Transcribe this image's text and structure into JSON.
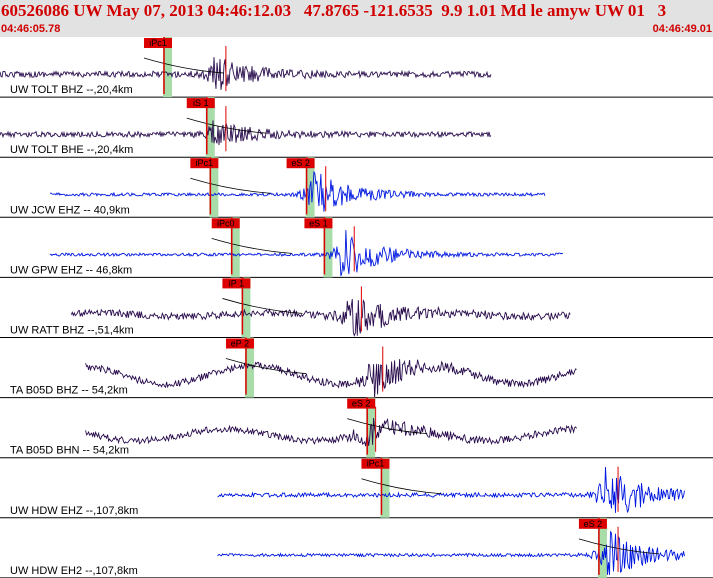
{
  "header": {
    "title": "60526086 UW May 07, 2013 04:46:12.03   47.8765 -121.6535  9.9 1.01 Md le amyw UW 01   3",
    "time_start": "04:46:05.78",
    "time_end": "04:46:49.01"
  },
  "colors": {
    "background": "#ffffff",
    "header_background": "#e2e2e2",
    "header_text": "#d10000",
    "trace_dark": "#2a0e4e",
    "trace_blue": "#0018e0",
    "pick_red": "#dd0000",
    "window_green": "#a8dca8"
  },
  "traces": [
    {
      "label": "UW TOLT BHZ --,20,4km",
      "color": "dark",
      "start": 0.0,
      "end": 0.69,
      "noise": 0.1,
      "burst_at": 0.3,
      "burst_amp": 0.55,
      "swell": 0,
      "picks": [
        {
          "label": "iPc1",
          "at": 0.23
        }
      ]
    },
    {
      "label": "UW TOLT BHE --,20,4km",
      "color": "dark",
      "start": 0.0,
      "end": 0.69,
      "noise": 0.09,
      "burst_at": 0.3,
      "burst_amp": 0.45,
      "swell": 0,
      "picks": [
        {
          "label": "iS 1",
          "at": 0.29
        }
      ]
    },
    {
      "label": "UW JCW EHZ -- 40,9km",
      "color": "blue",
      "start": 0.07,
      "end": 0.765,
      "noise": 0.05,
      "burst_at": 0.44,
      "burst_amp": 0.8,
      "swell": 0,
      "picks": [
        {
          "label": "iPc1",
          "at": 0.295
        },
        {
          "label": "eS 2",
          "at": 0.43
        }
      ]
    },
    {
      "label": "UW GPW EHZ -- 46,8km",
      "color": "blue",
      "start": 0.07,
      "end": 0.79,
      "noise": 0.05,
      "burst_at": 0.48,
      "burst_amp": 0.85,
      "swell": 0,
      "picks": [
        {
          "label": "iPc0",
          "at": 0.325
        },
        {
          "label": "eS 1",
          "at": 0.455
        }
      ]
    },
    {
      "label": "UW RATT BHZ --,51,4km",
      "color": "dark",
      "start": 0.1,
      "end": 0.8,
      "noise": 0.12,
      "burst_at": 0.49,
      "burst_amp": 0.7,
      "swell": 0.12,
      "picks": [
        {
          "label": "iP 1",
          "at": 0.34
        }
      ]
    },
    {
      "label": "TA B05D BHZ -- 54,2km",
      "color": "dark",
      "start": 0.12,
      "end": 0.81,
      "noise": 0.12,
      "burst_at": 0.52,
      "burst_amp": 0.6,
      "swell": 0.55,
      "picks": [
        {
          "label": "eP 2",
          "at": 0.345
        }
      ]
    },
    {
      "label": "TA B05D BHN -- 54,2km",
      "color": "dark",
      "start": 0.12,
      "end": 0.81,
      "noise": 0.11,
      "burst_at": 0.51,
      "burst_amp": 0.5,
      "swell": 0.35,
      "picks": [
        {
          "label": "eS 2",
          "at": 0.515
        }
      ]
    },
    {
      "label": "UW HDW EHZ --,107,8km",
      "color": "blue",
      "start": 0.305,
      "end": 0.96,
      "noise": 0.07,
      "burst_at": 0.85,
      "burst_amp": 0.95,
      "swell": 0,
      "picks": [
        {
          "label": "iPc1",
          "at": 0.535
        }
      ]
    },
    {
      "label": "UW HDW EH2 --,107,8km",
      "color": "blue",
      "start": 0.305,
      "end": 0.96,
      "noise": 0.05,
      "burst_at": 0.85,
      "burst_amp": 0.9,
      "swell": 0,
      "picks": [
        {
          "label": "eS 2",
          "at": 0.84
        }
      ]
    }
  ]
}
